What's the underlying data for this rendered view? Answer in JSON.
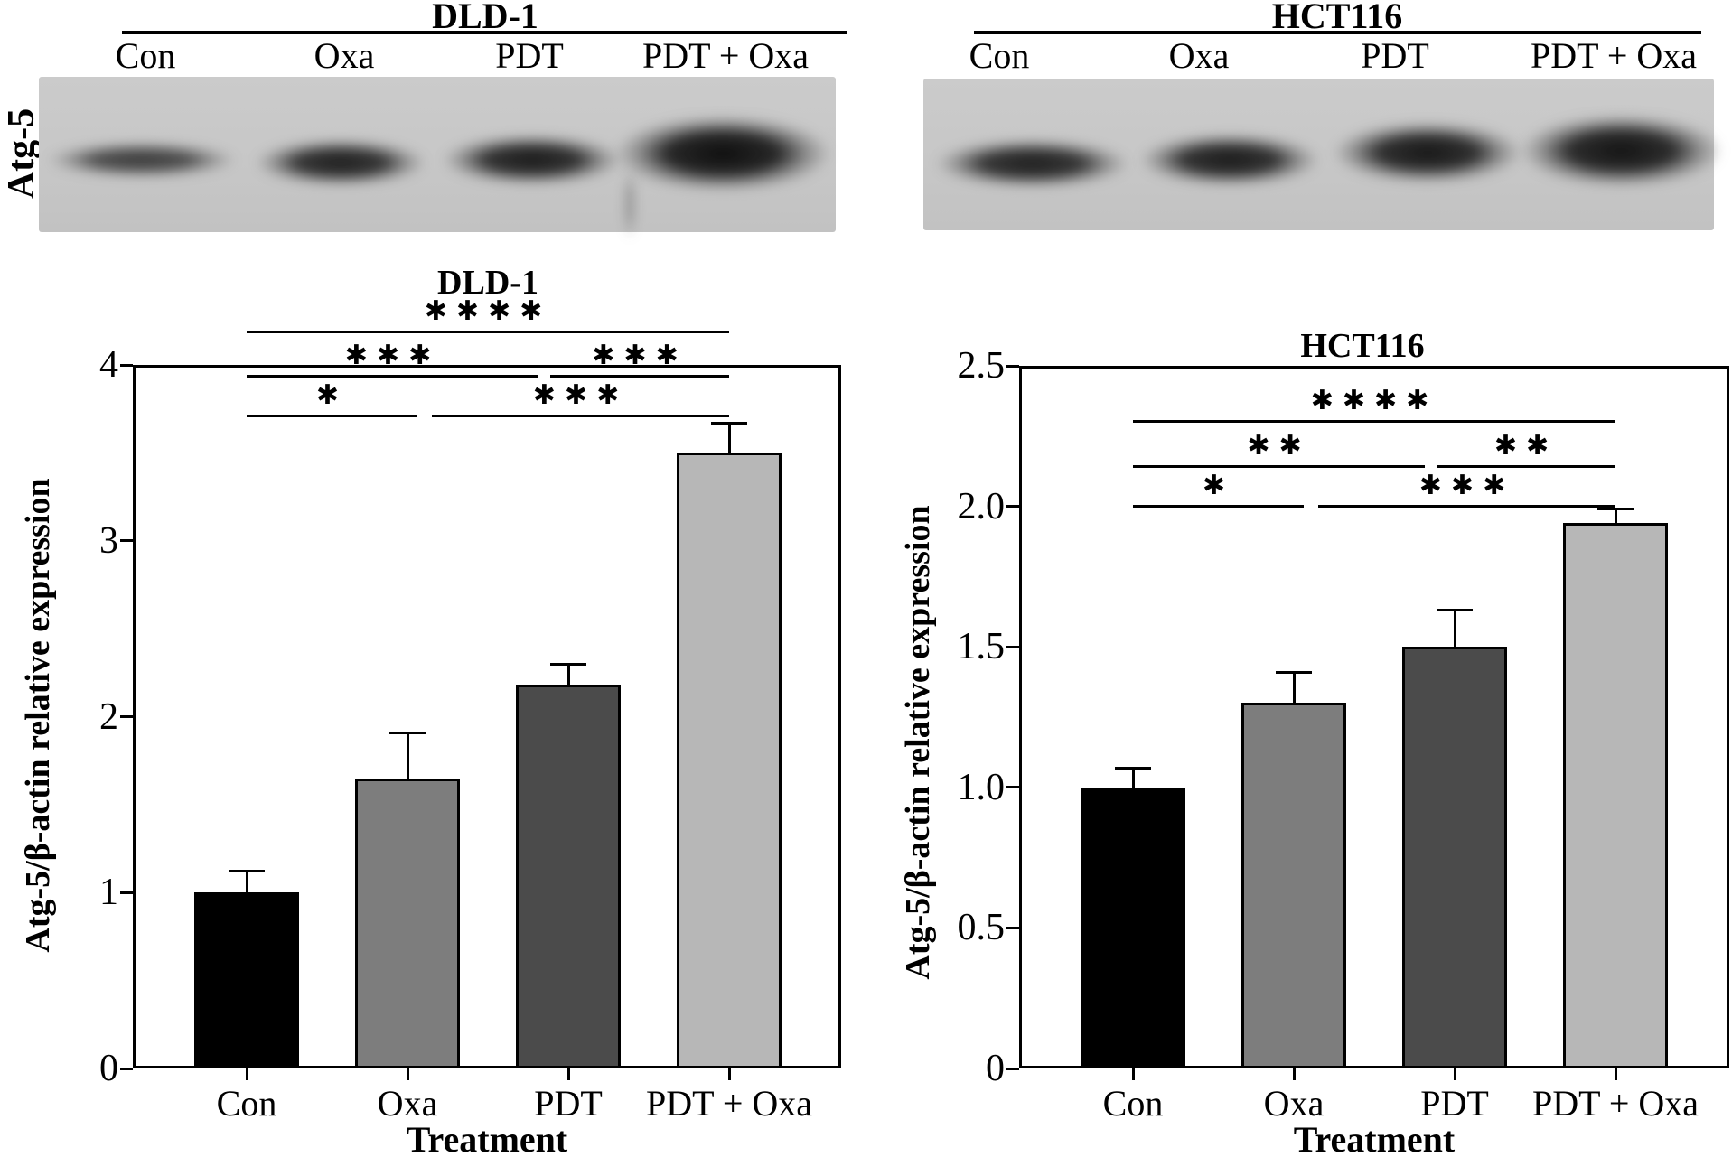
{
  "blot_panels": [
    {
      "cell_line": "DLD-1",
      "protein_label": "Atg-5",
      "lanes": [
        "Con",
        "Oxa",
        "PDT",
        "PDT + Oxa"
      ],
      "band_intensities": [
        "weak",
        "medium",
        "strong",
        "very strong"
      ]
    },
    {
      "cell_line": "HCT116",
      "protein_label": "",
      "lanes": [
        "Con",
        "Oxa",
        "PDT",
        "PDT + Oxa"
      ],
      "band_intensities": [
        "medium",
        "strong",
        "strong",
        "very strong"
      ]
    }
  ],
  "chart_data": [
    {
      "type": "bar",
      "title": "DLD-1",
      "xlabel": "Treatment",
      "ylabel": "Atg-5/β-actin relative expression",
      "categories": [
        "Con",
        "Oxa",
        "PDT",
        "PDT + Oxa"
      ],
      "values": [
        1.0,
        1.65,
        2.18,
        3.5
      ],
      "errors": [
        0.12,
        0.26,
        0.12,
        0.17
      ],
      "ylim": [
        0,
        4
      ],
      "yticks": [
        0,
        1,
        2,
        3,
        4
      ],
      "ytick_labels": [
        "0",
        "1",
        "2",
        "3",
        "4"
      ],
      "bar_colors": [
        "#000000",
        "#7d7d7d",
        "#4b4b4b",
        "#b7b7b7"
      ],
      "grid": "off",
      "legend": "none",
      "significance": [
        {
          "groups": [
            "Con",
            "PDT + Oxa"
          ],
          "stars": "****"
        },
        {
          "groups": [
            "Con",
            "PDT"
          ],
          "stars": "***"
        },
        {
          "groups": [
            "PDT",
            "PDT + Oxa"
          ],
          "stars": "***"
        },
        {
          "groups": [
            "Con",
            "Oxa"
          ],
          "stars": "*"
        },
        {
          "groups": [
            "Oxa",
            "PDT + Oxa"
          ],
          "stars": "***"
        }
      ]
    },
    {
      "type": "bar",
      "title": "HCT116",
      "xlabel": "Treatment",
      "ylabel": "Atg-5/β-actin relative expression",
      "categories": [
        "Con",
        "Oxa",
        "PDT",
        "PDT + Oxa"
      ],
      "values": [
        1.0,
        1.3,
        1.5,
        1.94
      ],
      "errors": [
        0.07,
        0.11,
        0.13,
        0.05
      ],
      "ylim": [
        0,
        2.5
      ],
      "yticks": [
        0,
        0.5,
        1.0,
        1.5,
        2.0,
        2.5
      ],
      "ytick_labels": [
        "0",
        "0.5",
        "1.0",
        "1.5",
        "2.0",
        "2.5"
      ],
      "bar_colors": [
        "#000000",
        "#7d7d7d",
        "#4b4b4b",
        "#b7b7b7"
      ],
      "grid": "off",
      "legend": "none",
      "significance": [
        {
          "groups": [
            "Con",
            "PDT + Oxa"
          ],
          "stars": "****"
        },
        {
          "groups": [
            "Con",
            "PDT"
          ],
          "stars": "**"
        },
        {
          "groups": [
            "PDT",
            "PDT + Oxa"
          ],
          "stars": "**"
        },
        {
          "groups": [
            "Con",
            "Oxa"
          ],
          "stars": "*"
        },
        {
          "groups": [
            "Oxa",
            "PDT + Oxa"
          ],
          "stars": "***"
        }
      ]
    }
  ]
}
